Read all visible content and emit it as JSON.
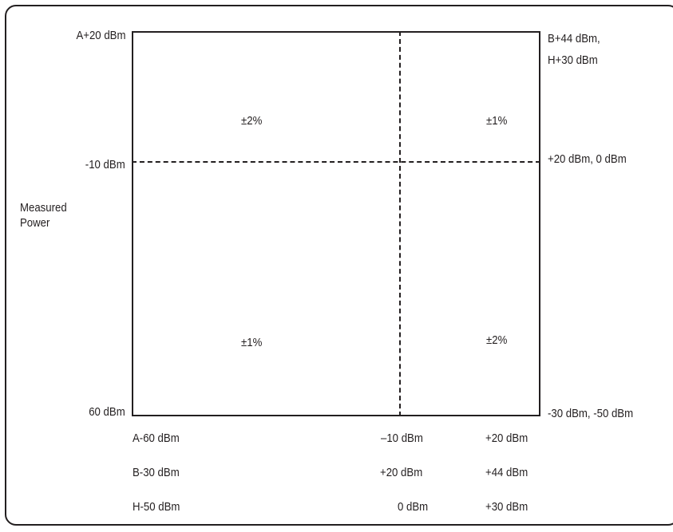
{
  "axis": {
    "left_top": "A+20 dBm",
    "left_mid": "-10 dBm",
    "left_bottom": "60 dBm",
    "y_title_line1": "Measured",
    "y_title_line2": "Power",
    "right_top_line1": "B+44 dBm,",
    "right_top_line2": "H+30 dBm",
    "right_mid": "+20 dBm, 0 dBm",
    "right_bottom": "-30 dBm, -50 dBm"
  },
  "regions": {
    "top_left": "±2%",
    "top_right": "±1%",
    "bottom_left": "±1%",
    "bottom_right": "±2%"
  },
  "bottom_rows": [
    {
      "label": "A-60 dBm",
      "mid": "–10 dBm",
      "right": "+20 dBm"
    },
    {
      "label": "B-30 dBm",
      "mid": "+20 dBm",
      "right": "+44 dBm"
    },
    {
      "label": "H-50 dBm",
      "mid": "0 dBm",
      "right": "+30 dBm"
    }
  ]
}
